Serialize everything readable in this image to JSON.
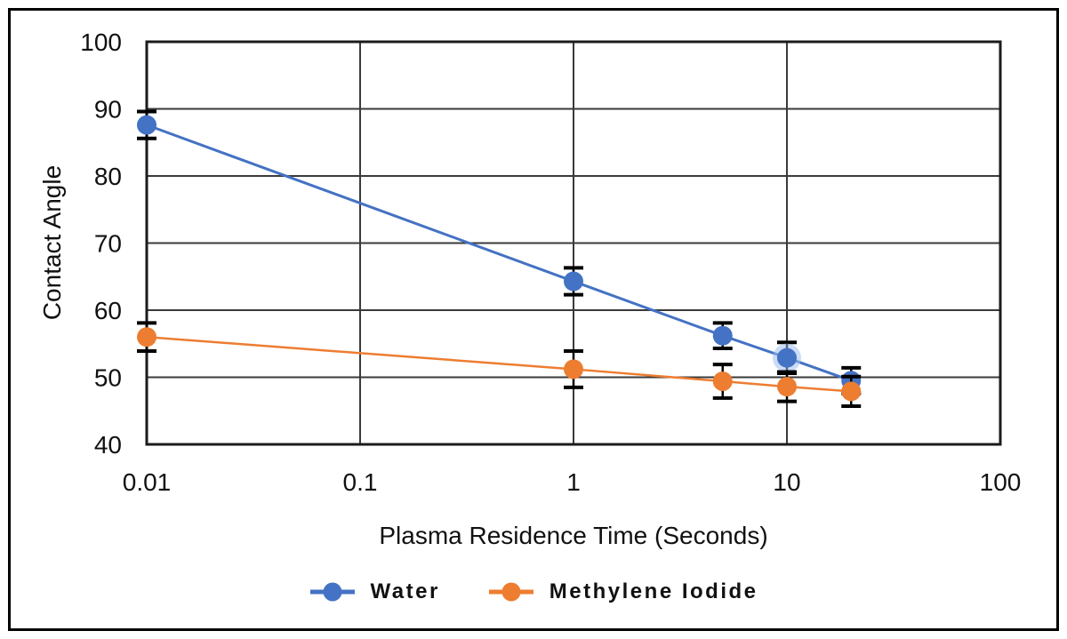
{
  "chart_data": {
    "type": "line",
    "title": "",
    "xlabel": "Plasma Residence Time (Seconds)",
    "ylabel": "Contact Angle",
    "x_scale": "log",
    "xlim": [
      0.01,
      100
    ],
    "ylim": [
      40,
      100
    ],
    "xticks": [
      0.01,
      0.1,
      1,
      10,
      100
    ],
    "xtick_labels": [
      "0.01",
      "0.1",
      "1",
      "10",
      "100"
    ],
    "yticks": [
      100,
      90,
      80,
      70,
      60,
      50,
      40
    ],
    "ytick_labels": [
      "100",
      "90",
      "80",
      "70",
      "60",
      "50",
      "40"
    ],
    "grid": true,
    "legend_position": "bottom",
    "x": [
      0.01,
      1,
      5,
      10,
      20
    ],
    "series": [
      {
        "name": "Water",
        "color": "#4472c4",
        "values": [
          87.6,
          64.3,
          56.2,
          52.9,
          49.5
        ],
        "error": [
          2.0,
          2.0,
          1.9,
          2.3,
          1.9
        ],
        "highlight_index": 3,
        "highlight_halo_color": "#9fc0ee"
      },
      {
        "name": "Methylene Iodide",
        "color": "#ed7d31",
        "values": [
          56.0,
          51.2,
          49.4,
          48.6,
          47.9
        ],
        "error": [
          2.1,
          2.7,
          2.5,
          2.2,
          2.2
        ],
        "highlight_index": -1,
        "highlight_halo_color": ""
      }
    ],
    "error_bar_color": "#000000",
    "frame_color": "#1b1b1b",
    "grid_color": "#3a3a3a",
    "background": "#ffffff"
  }
}
